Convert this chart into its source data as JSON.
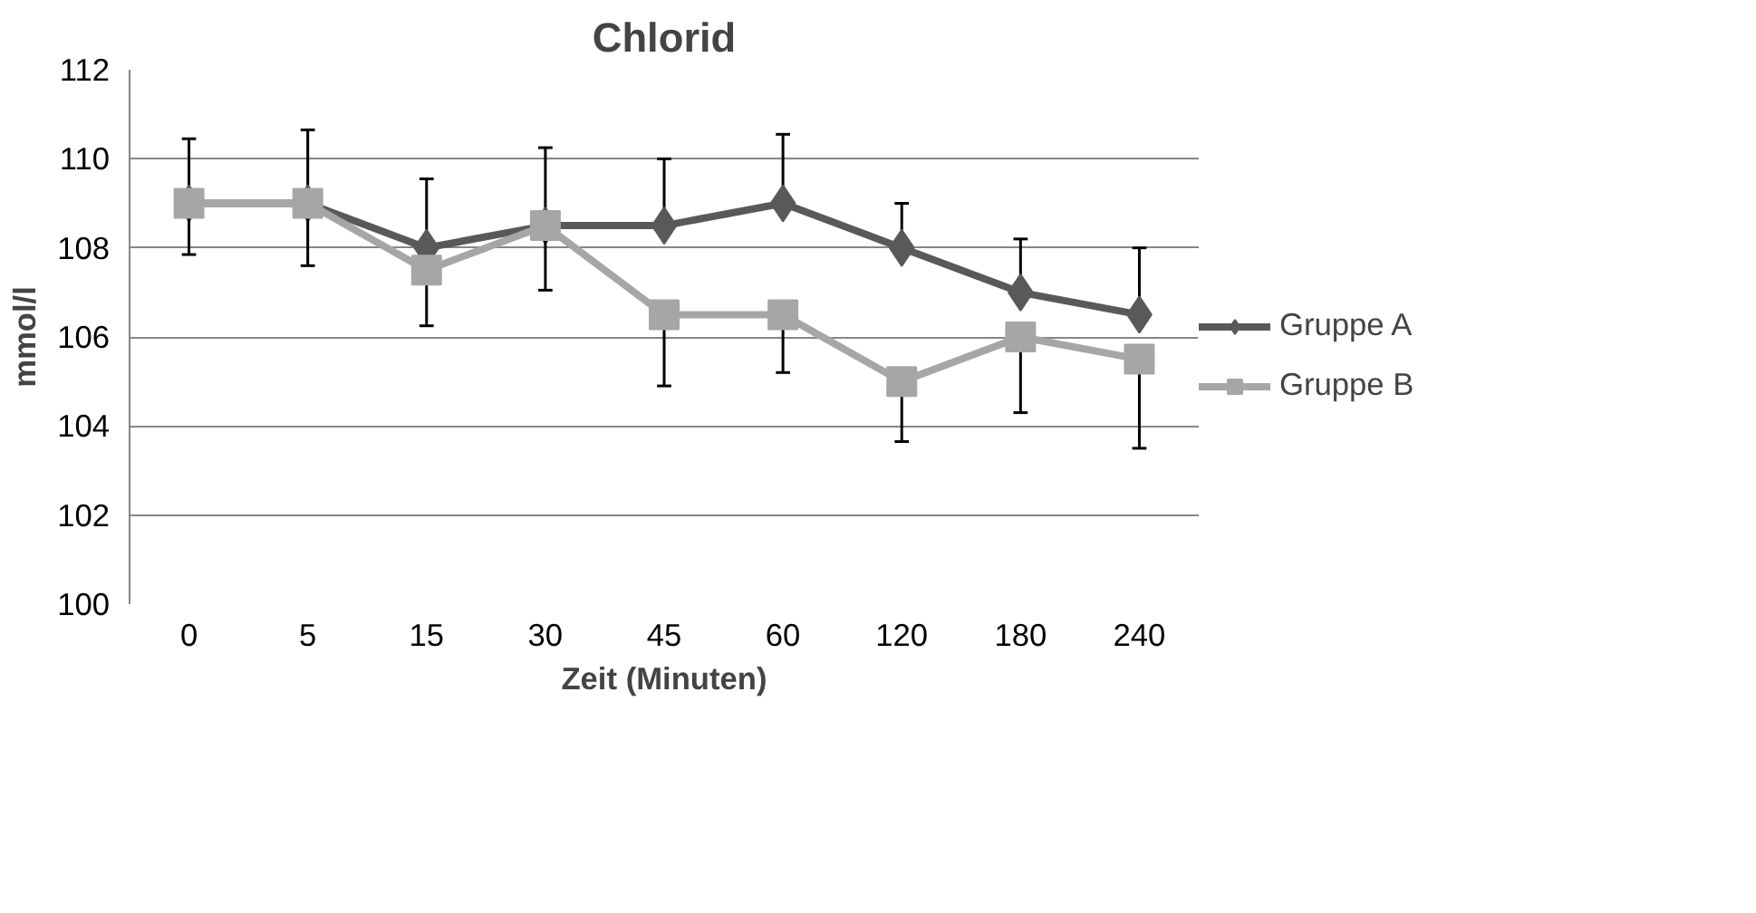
{
  "chart_data": {
    "type": "line",
    "title": "Chlorid",
    "xlabel": "Zeit (Minuten)",
    "ylabel": "mmol/l",
    "categories": [
      "0",
      "5",
      "15",
      "30",
      "45",
      "60",
      "120",
      "180",
      "240"
    ],
    "series": [
      {
        "name": "Gruppe A",
        "color": "#595959",
        "marker": "diamond",
        "values": [
          109,
          109,
          108,
          108.5,
          108.5,
          109,
          108,
          107,
          106.5
        ],
        "errors": [
          [
            109,
            110.45
          ],
          [
            109,
            110.65
          ],
          [
            108,
            109.55
          ],
          [
            108.5,
            110.25
          ],
          [
            108.5,
            110
          ],
          [
            109,
            110.55
          ],
          [
            108,
            109
          ],
          [
            107,
            108.2
          ],
          [
            106.5,
            108
          ]
        ]
      },
      {
        "name": "Gruppe B",
        "color": "#a6a6a6",
        "marker": "square",
        "values": [
          109,
          109,
          107.5,
          108.5,
          106.5,
          106.5,
          105,
          106,
          105.5
        ],
        "errors": [
          [
            107.85,
            109
          ],
          [
            107.6,
            109
          ],
          [
            106.25,
            107.5
          ],
          [
            107.05,
            108.5
          ],
          [
            104.9,
            106.5
          ],
          [
            105.2,
            106.5
          ],
          [
            103.65,
            105
          ],
          [
            104.3,
            106
          ],
          [
            103.5,
            105.5
          ]
        ]
      }
    ],
    "ylim": [
      100,
      112
    ],
    "yticks": [
      100,
      102,
      104,
      106,
      108,
      110,
      112
    ],
    "grid": "y",
    "legend": "right",
    "line_style": "solid"
  }
}
